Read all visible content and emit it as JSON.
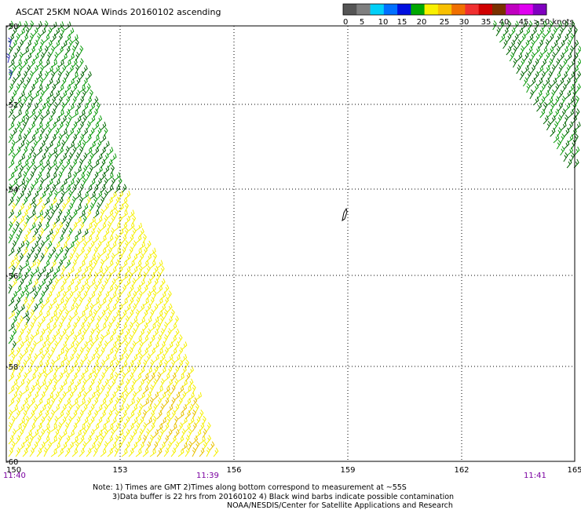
{
  "title": "ASCAT 25KM NOAA Winds 20160102 ascending",
  "legend": {
    "colors": [
      "#555555",
      "#7f7f7f",
      "#00d0f8",
      "#0070ff",
      "#0010e0",
      "#00a800",
      "#f8f000",
      "#f8c000",
      "#f07000",
      "#f03030",
      "#d00000",
      "#7a3000",
      "#c000c0",
      "#e000f0",
      "#8000c0"
    ],
    "labels": [
      "0",
      "5",
      "10",
      "15",
      "20",
      "25",
      "30",
      "35",
      "40",
      "45",
      ">50 knots"
    ]
  },
  "axes": {
    "lon_labels": [
      "150",
      "153",
      "156",
      "159",
      "162",
      "165"
    ],
    "lat_labels": [
      "-50",
      "-52",
      "-54",
      "-56",
      "-58",
      "-60"
    ]
  },
  "times": [
    "11:40",
    "11:39",
    "11:41"
  ],
  "notes": {
    "line1": "Note: 1) Times are GMT 2)Times along bottom correspond to measurement at ~55S",
    "line2": "3)Data buffer is 22 hrs from 20160102 4) Black wind barbs indicate possible contamination",
    "line3": "NOAA/NESDIS/Center for Satellite Applications and Research"
  }
}
